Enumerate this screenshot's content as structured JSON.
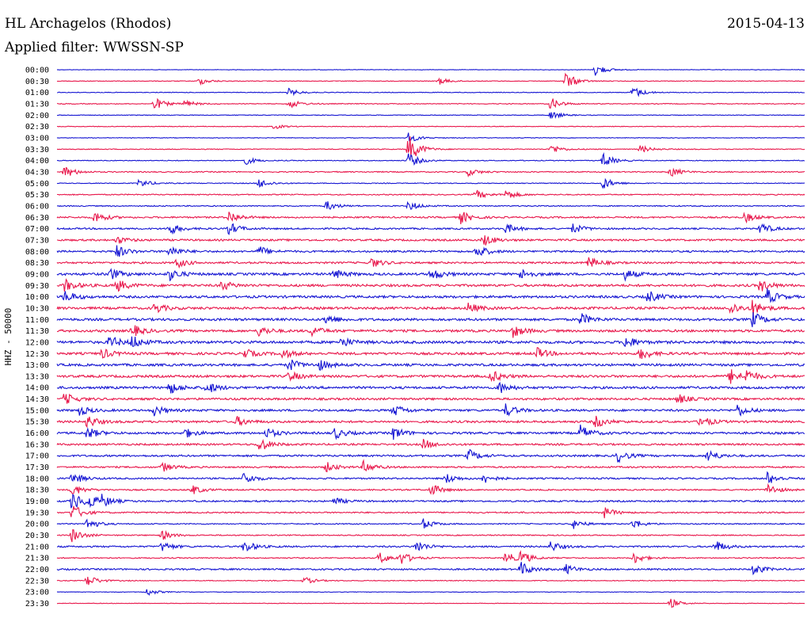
{
  "header": {
    "station": "HL Archagelos (Rhodos)",
    "date": "2015-04-13",
    "filter": "Applied filter: WWSSN-SP"
  },
  "chart_data": {
    "type": "line",
    "title": "HL Archagelos (Rhodos)",
    "ylabel": "HHZ - 50000",
    "row_labels": [
      "00:00",
      "00:30",
      "01:00",
      "01:30",
      "02:00",
      "02:30",
      "03:00",
      "03:30",
      "04:00",
      "04:30",
      "05:00",
      "05:30",
      "06:00",
      "06:30",
      "07:00",
      "07:30",
      "08:00",
      "08:30",
      "09:00",
      "09:30",
      "10:00",
      "10:30",
      "11:00",
      "11:30",
      "12:00",
      "12:30",
      "13:00",
      "13:30",
      "14:00",
      "14:30",
      "15:00",
      "15:30",
      "16:00",
      "16:30",
      "17:00",
      "17:30",
      "18:00",
      "18:30",
      "19:00",
      "19:30",
      "20:00",
      "20:30",
      "21:00",
      "21:30",
      "22:00",
      "22:30",
      "23:00",
      "23:30"
    ],
    "series_colors": [
      "#1414d2",
      "#e8174b"
    ],
    "noise_level": [
      0.1,
      0.12,
      0.12,
      0.15,
      0.12,
      0.12,
      0.12,
      0.15,
      0.15,
      0.2,
      0.15,
      0.2,
      0.2,
      0.3,
      0.3,
      0.35,
      0.35,
      0.35,
      0.45,
      0.45,
      0.45,
      0.45,
      0.45,
      0.45,
      0.5,
      0.45,
      0.45,
      0.45,
      0.45,
      0.4,
      0.4,
      0.4,
      0.4,
      0.35,
      0.35,
      0.3,
      0.3,
      0.25,
      0.3,
      0.25,
      0.2,
      0.2,
      0.3,
      0.2,
      0.3,
      0.15,
      0.1,
      0.1
    ],
    "events": [
      [
        [
          0.72,
          2.5
        ]
      ],
      [
        [
          0.19,
          1.5
        ],
        [
          0.51,
          1.5
        ],
        [
          0.68,
          3.5
        ]
      ],
      [
        [
          0.31,
          1.5
        ],
        [
          0.77,
          2.5
        ]
      ],
      [
        [
          0.13,
          2.5
        ],
        [
          0.17,
          1.5
        ],
        [
          0.31,
          2.0
        ],
        [
          0.66,
          2.5
        ]
      ],
      [
        [
          0.66,
          1.8
        ]
      ],
      [
        [
          0.29,
          1.0
        ]
      ],
      [
        [
          0.47,
          2.0
        ]
      ],
      [
        [
          0.47,
          6.0
        ],
        [
          0.66,
          2.0
        ],
        [
          0.78,
          1.5
        ]
      ],
      [
        [
          0.25,
          1.8
        ],
        [
          0.73,
          3.0
        ],
        [
          0.47,
          3.0
        ]
      ],
      [
        [
          0.01,
          2.5
        ],
        [
          0.82,
          2.0
        ],
        [
          0.55,
          1.5
        ]
      ],
      [
        [
          0.11,
          1.8
        ],
        [
          0.27,
          2.0
        ],
        [
          0.73,
          2.5
        ]
      ],
      [
        [
          0.56,
          2.0
        ],
        [
          0.6,
          2.0
        ]
      ],
      [
        [
          0.36,
          2.0
        ],
        [
          0.47,
          2.0
        ]
      ],
      [
        [
          0.05,
          2.5
        ],
        [
          0.23,
          2.5
        ],
        [
          0.54,
          2.5
        ],
        [
          0.92,
          2.0
        ]
      ],
      [
        [
          0.15,
          2.5
        ],
        [
          0.23,
          2.5
        ],
        [
          0.6,
          2.0
        ],
        [
          0.69,
          2.0
        ],
        [
          0.94,
          2.5
        ]
      ],
      [
        [
          0.57,
          2.5
        ],
        [
          0.08,
          1.5
        ]
      ],
      [
        [
          0.08,
          2.5
        ],
        [
          0.15,
          2.5
        ],
        [
          0.27,
          2.0
        ],
        [
          0.56,
          3.0
        ]
      ],
      [
        [
          0.16,
          2.0
        ],
        [
          0.42,
          2.0
        ],
        [
          0.71,
          2.5
        ]
      ],
      [
        [
          0.07,
          2.5
        ],
        [
          0.15,
          2.5
        ],
        [
          0.37,
          2.0
        ],
        [
          0.5,
          2.5
        ],
        [
          0.62,
          2.0
        ],
        [
          0.76,
          2.0
        ]
      ],
      [
        [
          0.01,
          2.5
        ],
        [
          0.08,
          2.5
        ],
        [
          0.22,
          2.0
        ],
        [
          0.94,
          2.5
        ]
      ],
      [
        [
          0.01,
          2.5
        ],
        [
          0.79,
          2.5
        ],
        [
          0.95,
          3.0
        ]
      ],
      [
        [
          0.13,
          2.0
        ],
        [
          0.55,
          2.0
        ],
        [
          0.9,
          2.5
        ],
        [
          0.93,
          3.0
        ]
      ],
      [
        [
          0.36,
          2.0
        ],
        [
          0.7,
          2.5
        ],
        [
          0.93,
          3.0
        ]
      ],
      [
        [
          0.1,
          2.5
        ],
        [
          0.27,
          2.0
        ],
        [
          0.34,
          2.0
        ],
        [
          0.61,
          2.5
        ]
      ],
      [
        [
          0.07,
          2.5
        ],
        [
          0.1,
          2.5
        ],
        [
          0.38,
          2.0
        ],
        [
          0.76,
          2.5
        ]
      ],
      [
        [
          0.06,
          2.0
        ],
        [
          0.25,
          2.0
        ],
        [
          0.3,
          2.0
        ],
        [
          0.64,
          2.5
        ],
        [
          0.78,
          2.5
        ]
      ],
      [
        [
          0.31,
          2.5
        ],
        [
          0.35,
          2.0
        ]
      ],
      [
        [
          0.31,
          2.0
        ],
        [
          0.58,
          2.5
        ],
        [
          0.9,
          3.0
        ],
        [
          0.92,
          2.5
        ]
      ],
      [
        [
          0.15,
          2.5
        ],
        [
          0.2,
          2.5
        ],
        [
          0.59,
          2.5
        ]
      ],
      [
        [
          0.01,
          2.5
        ],
        [
          0.83,
          2.0
        ]
      ],
      [
        [
          0.03,
          2.0
        ],
        [
          0.13,
          2.0
        ],
        [
          0.45,
          2.5
        ],
        [
          0.6,
          2.5
        ],
        [
          0.91,
          2.5
        ]
      ],
      [
        [
          0.04,
          2.5
        ],
        [
          0.24,
          2.0
        ],
        [
          0.72,
          2.5
        ],
        [
          0.86,
          2.5
        ]
      ],
      [
        [
          0.04,
          2.5
        ],
        [
          0.17,
          2.0
        ],
        [
          0.28,
          2.0
        ],
        [
          0.37,
          2.5
        ],
        [
          0.45,
          2.5
        ],
        [
          0.7,
          3.0
        ]
      ],
      [
        [
          0.27,
          3.0
        ],
        [
          0.49,
          2.0
        ]
      ],
      [
        [
          0.55,
          2.5
        ],
        [
          0.75,
          2.5
        ],
        [
          0.87,
          2.5
        ]
      ],
      [
        [
          0.14,
          2.0
        ],
        [
          0.36,
          2.0
        ],
        [
          0.41,
          2.5
        ]
      ],
      [
        [
          0.02,
          2.5
        ],
        [
          0.25,
          2.5
        ],
        [
          0.52,
          2.0
        ],
        [
          0.57,
          2.0
        ],
        [
          0.95,
          2.5
        ]
      ],
      [
        [
          0.02,
          2.5
        ],
        [
          0.18,
          2.0
        ],
        [
          0.5,
          2.5
        ],
        [
          0.95,
          2.5
        ]
      ],
      [
        [
          0.02,
          4.0
        ],
        [
          0.04,
          3.0
        ],
        [
          0.06,
          2.0
        ],
        [
          0.37,
          1.5
        ]
      ],
      [
        [
          0.02,
          3.5
        ],
        [
          0.73,
          2.5
        ]
      ],
      [
        [
          0.04,
          2.5
        ],
        [
          0.49,
          2.0
        ],
        [
          0.69,
          2.0
        ],
        [
          0.77,
          2.0
        ]
      ],
      [
        [
          0.02,
          3.0
        ],
        [
          0.14,
          2.0
        ]
      ],
      [
        [
          0.14,
          2.0
        ],
        [
          0.25,
          2.5
        ],
        [
          0.48,
          2.5
        ],
        [
          0.66,
          2.0
        ],
        [
          0.88,
          2.5
        ]
      ],
      [
        [
          0.43,
          2.5
        ],
        [
          0.46,
          2.5
        ],
        [
          0.6,
          2.5
        ],
        [
          0.62,
          2.5
        ],
        [
          0.77,
          2.5
        ]
      ],
      [
        [
          0.62,
          3.0
        ],
        [
          0.68,
          2.0
        ],
        [
          0.93,
          2.5
        ]
      ],
      [
        [
          0.04,
          2.5
        ],
        [
          0.33,
          1.5
        ]
      ],
      [
        [
          0.12,
          1.5
        ]
      ],
      [
        [
          0.82,
          2.0
        ]
      ]
    ]
  }
}
